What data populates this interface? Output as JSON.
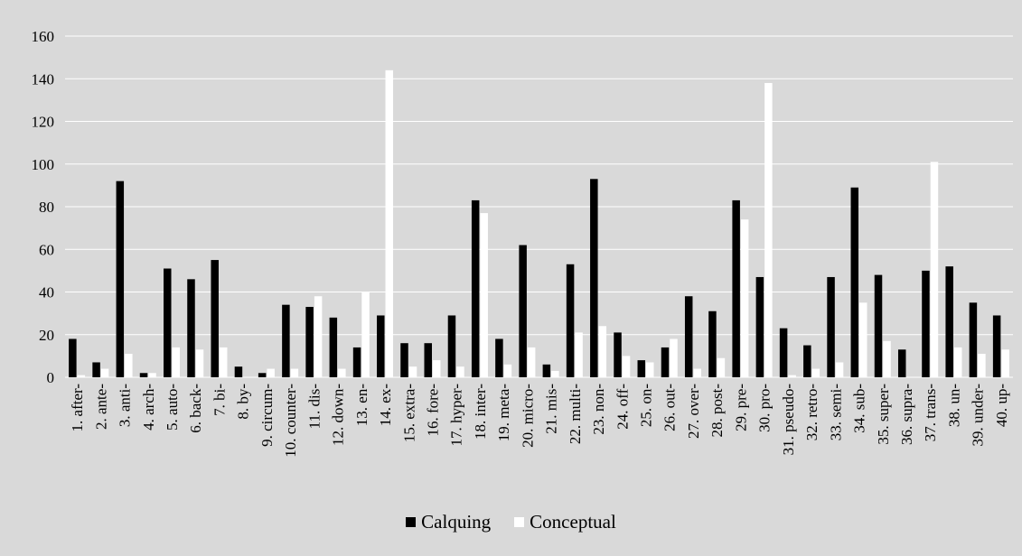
{
  "chart_data": {
    "type": "bar",
    "categories": [
      "1. after-",
      "2. ante-",
      "3. anti-",
      "4. arch-",
      "5. auto-",
      "6. back-",
      "7. bi-",
      "8. by-",
      "9. circum-",
      "10. counter-",
      "11. dis-",
      "12. down-",
      "13. en-",
      "14. ex-",
      "15. extra-",
      "16. fore-",
      "17. hyper-",
      "18. inter-",
      "19. meta-",
      "20. micro-",
      "21. mis-",
      "22. multi-",
      "23. non-",
      "24. off-",
      "25. on-",
      "26. out-",
      "27. over-",
      "28. post-",
      "29. pre-",
      "30. pro-",
      "31. pseudo-",
      "32. retro-",
      "33. semi-",
      "34. sub-",
      "35. super-",
      "36. supra-",
      "37. trans-",
      "38. un-",
      "39. under-",
      "40. up-"
    ],
    "series": [
      {
        "name": "Calquing",
        "color": "#000000",
        "values": [
          18,
          7,
          92,
          2,
          51,
          46,
          55,
          5,
          2,
          34,
          33,
          28,
          14,
          29,
          16,
          16,
          29,
          83,
          18,
          62,
          6,
          53,
          93,
          21,
          8,
          14,
          38,
          31,
          83,
          47,
          23,
          15,
          47,
          89,
          48,
          13,
          50,
          52,
          35,
          29
        ]
      },
      {
        "name": "Conceptual",
        "color": "#ffffff",
        "values": [
          1,
          4,
          11,
          2,
          14,
          13,
          14,
          0,
          4,
          4,
          38,
          4,
          40,
          144,
          5,
          8,
          5,
          77,
          6,
          14,
          3,
          21,
          24,
          10,
          7,
          18,
          4,
          9,
          74,
          138,
          1,
          4,
          7,
          35,
          17,
          0,
          101,
          14,
          11,
          13
        ]
      }
    ],
    "yticks": [
      0,
      20,
      40,
      60,
      80,
      100,
      120,
      140,
      160
    ],
    "ylim": [
      0,
      160
    ],
    "grid": true,
    "legend_position": "bottom",
    "background": "#d9d9d9",
    "gridline_color": "#ffffff"
  },
  "legend": {
    "calquing": "Calquing",
    "conceptual": "Conceptual"
  }
}
